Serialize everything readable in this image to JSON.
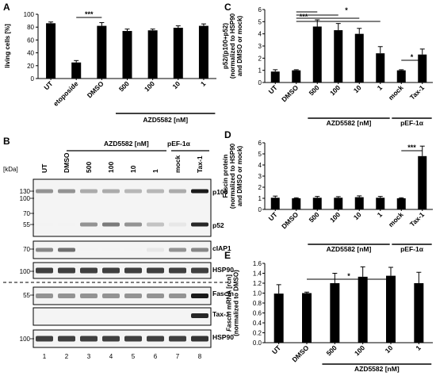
{
  "panels": {
    "A": {
      "letter": "A"
    },
    "B": {
      "letter": "B"
    },
    "C": {
      "letter": "C"
    },
    "D": {
      "letter": "D"
    },
    "E": {
      "letter": "E"
    }
  },
  "chart_data": [
    {
      "id": "A",
      "type": "bar",
      "ylabel": "living cells [%]",
      "ylim": [
        0,
        100
      ],
      "yticks": [
        "0",
        "20",
        "40",
        "60",
        "80",
        "100"
      ],
      "categories": [
        "UT",
        "etoposide",
        "DMSO",
        "500",
        "100",
        "10",
        "1"
      ],
      "values": [
        86,
        25,
        82,
        74,
        75,
        79,
        82
      ],
      "errors": [
        2,
        3,
        5,
        3,
        2,
        3,
        3
      ],
      "groups": [
        {
          "label": "AZD5582 [nM]",
          "from": 3,
          "to": 6
        }
      ],
      "significance": [
        {
          "from": 1,
          "to": 2,
          "label": "***"
        }
      ]
    },
    {
      "id": "C",
      "type": "bar",
      "ylabel_lines": [
        "p52/(p100+p52)",
        "(normalized to HSP90",
        "and DMSO or mock)"
      ],
      "ylim": [
        0,
        6
      ],
      "yticks": [
        "0",
        "1",
        "2",
        "3",
        "4",
        "5",
        "6"
      ],
      "categories": [
        "UT",
        "DMSO",
        "500",
        "100",
        "10",
        "1",
        "mock",
        "Tax-1"
      ],
      "values": [
        0.9,
        1.0,
        4.6,
        4.3,
        4.0,
        2.4,
        1.0,
        2.3
      ],
      "errors": [
        0.15,
        0.05,
        0.55,
        0.55,
        0.45,
        0.55,
        0.05,
        0.45
      ],
      "groups": [
        {
          "label": "AZD5582 [nM]",
          "from": 2,
          "to": 5
        },
        {
          "label": "pEF-1α",
          "from": 6,
          "to": 7
        }
      ],
      "significance": [
        {
          "from": 1,
          "to": 2,
          "label": "***"
        },
        {
          "from": 1,
          "to": 3,
          "label": "***"
        },
        {
          "from": 1,
          "to": 4,
          "label": "***"
        },
        {
          "from": 1,
          "to": 5,
          "label": "*"
        },
        {
          "from": 6,
          "to": 7,
          "label": "*"
        }
      ]
    },
    {
      "id": "D",
      "type": "bar",
      "ylabel_lines": [
        "Fascin protein",
        "(normalized to HSP90",
        "and DMSO or mock)"
      ],
      "ylim": [
        0,
        6
      ],
      "yticks": [
        "0",
        "1",
        "2",
        "3",
        "4",
        "5",
        "6"
      ],
      "categories": [
        "UT",
        "DMSO",
        "500",
        "100",
        "10",
        "1",
        "mock",
        "Tax-1"
      ],
      "values": [
        1.05,
        1.0,
        1.05,
        1.05,
        1.1,
        1.05,
        1.0,
        4.8
      ],
      "errors": [
        0.15,
        0.05,
        0.12,
        0.1,
        0.12,
        0.12,
        0.05,
        0.9
      ],
      "groups": [
        {
          "label": "AZD5582 [nM]",
          "from": 2,
          "to": 5
        },
        {
          "label": "pEF-1α",
          "from": 6,
          "to": 7
        }
      ],
      "significance": [
        {
          "from": 6,
          "to": 7,
          "label": "***"
        }
      ]
    },
    {
      "id": "E",
      "type": "bar",
      "ylabel_lines": [
        "Fascin mRNA [rcn]",
        "(normalized to DMSO)"
      ],
      "ylim": [
        0,
        1.6
      ],
      "yticks": [
        "0.0",
        "0.2",
        "0.4",
        "0.6",
        "0.8",
        "1.0",
        "1.2",
        "1.4",
        "1.6"
      ],
      "categories": [
        "UT",
        "DMSO",
        "500",
        "100",
        "10",
        "1"
      ],
      "values": [
        0.99,
        1.0,
        1.2,
        1.33,
        1.35,
        1.2
      ],
      "errors": [
        0.18,
        0.02,
        0.2,
        0.2,
        0.17,
        0.22
      ],
      "groups": [
        {
          "label": "AZD5582 [nM]",
          "from": 2,
          "to": 5
        }
      ],
      "significance": [
        {
          "from": 1,
          "to": 4,
          "label": "*"
        }
      ]
    }
  ],
  "western": {
    "kda_label": "[kDa]",
    "lane_labels": [
      "UT",
      "DMSO",
      "500",
      "100",
      "10",
      "1",
      "mock",
      "Tax-1"
    ],
    "lane_numbers": [
      "1",
      "2",
      "3",
      "4",
      "5",
      "6",
      "7",
      "8"
    ],
    "group_azd": "AZD5582 [nM]",
    "group_pef": "pEF-1α",
    "blot1_markers": [
      "130",
      "100",
      "70",
      "55"
    ],
    "blot2_markers": [
      "70"
    ],
    "blot3_markers": [
      "100"
    ],
    "blot4_markers": [
      "55"
    ],
    "blot6_markers": [
      "100"
    ],
    "labels": {
      "p100": "p100",
      "p52": "p52",
      "ciap1": "cIAP1",
      "hsp90a": "HSP90",
      "fascin": "Fascin",
      "tax1": "Tax-1",
      "hsp90b": "HSP90"
    },
    "intensity": {
      "p100": [
        0.45,
        0.45,
        0.35,
        0.35,
        0.3,
        0.3,
        0.35,
        0.95
      ],
      "p52": [
        0.05,
        0.05,
        0.45,
        0.55,
        0.45,
        0.25,
        0.1,
        0.9
      ],
      "ciap1": [
        0.5,
        0.6,
        0.05,
        0.05,
        0.05,
        0.1,
        0.45,
        0.5
      ],
      "hsp90a": [
        0.8,
        0.8,
        0.8,
        0.8,
        0.8,
        0.8,
        0.8,
        0.8
      ],
      "fascin": [
        0.45,
        0.45,
        0.45,
        0.45,
        0.45,
        0.45,
        0.45,
        0.95
      ],
      "tax1": [
        0,
        0,
        0,
        0,
        0,
        0,
        0,
        0.9
      ],
      "hsp90b": [
        0.8,
        0.8,
        0.8,
        0.8,
        0.8,
        0.8,
        0.8,
        0.85
      ]
    }
  }
}
